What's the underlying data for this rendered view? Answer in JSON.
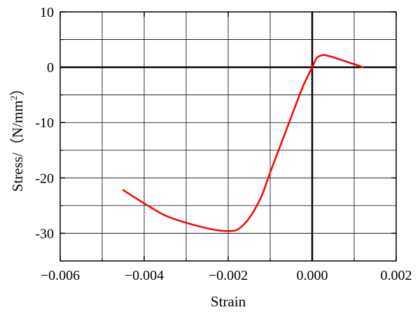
{
  "chart_data": {
    "type": "line",
    "title": "",
    "xlabel": "Strain",
    "ylabel_main": "Stress/（N/mm",
    "ylabel_sup": "2",
    "ylabel_close": "）",
    "xlim": [
      -0.006,
      0.002
    ],
    "ylim": [
      -35,
      10
    ],
    "x_ticks": [
      -0.006,
      -0.004,
      -0.002,
      0.0,
      0.002
    ],
    "x_tick_labels": [
      "−0.006",
      "−0.004",
      "−0.002",
      "0.000",
      "0.002"
    ],
    "x_minor_ticks": [
      -0.005,
      -0.003,
      -0.001,
      0.001
    ],
    "y_ticks": [
      10,
      0,
      -10,
      -20,
      -30
    ],
    "y_tick_labels": [
      "10",
      "0",
      "-10",
      "-20",
      "-30"
    ],
    "y_minor_ticks": [
      5,
      -5,
      -15,
      -25,
      -35
    ],
    "grid": true,
    "series": [
      {
        "color": "#ff0000",
        "x": [
          -0.0045,
          -0.004,
          -0.0035,
          -0.003,
          -0.0025,
          -0.0022,
          -0.002,
          -0.0018,
          -0.0016,
          -0.0014,
          -0.0012,
          -0.001,
          -0.0008,
          -0.0006,
          -0.0004,
          -0.0002,
          0.0,
          0.0001,
          0.0002,
          0.0003,
          0.0005,
          0.0007,
          0.0009,
          0.0011,
          0.0012
        ],
        "y": [
          -22.2,
          -24.6,
          -26.8,
          -28.1,
          -29.1,
          -29.5,
          -29.6,
          -29.4,
          -28.2,
          -26.1,
          -23.2,
          -19.0,
          -15.0,
          -11.0,
          -7.0,
          -3.1,
          0.0,
          1.6,
          2.1,
          2.2,
          1.8,
          1.3,
          0.8,
          0.3,
          0.0
        ]
      }
    ]
  }
}
